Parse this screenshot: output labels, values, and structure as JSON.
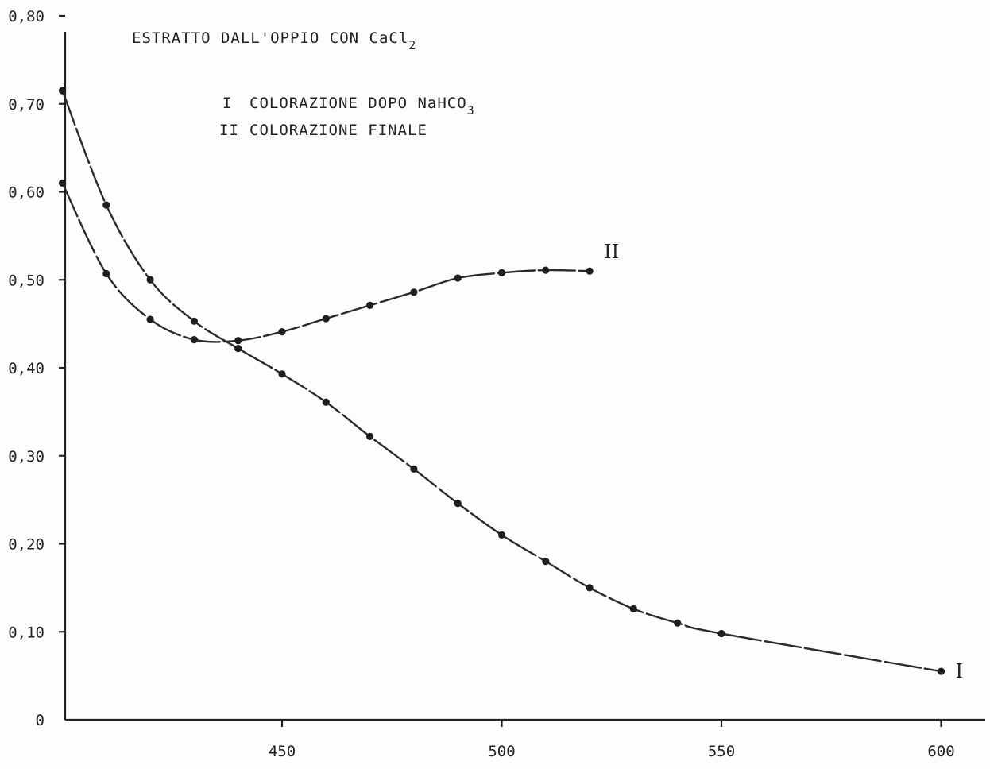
{
  "chart_data": {
    "type": "line",
    "title": "ESTRATTO DALL'OPPIO CON CaCl",
    "title_subscript": "2",
    "xlabel": "",
    "ylabel": "",
    "xlim": [
      402,
      610
    ],
    "ylim": [
      0,
      0.8
    ],
    "x_ticks": [
      450,
      500,
      550,
      600
    ],
    "x_tick_labels": [
      "450",
      "500",
      "550",
      "600"
    ],
    "y_ticks": [
      0,
      0.1,
      0.2,
      0.3,
      0.4,
      0.5,
      0.6,
      0.7,
      0.8
    ],
    "y_tick_labels": [
      "0",
      "0,10",
      "0,20",
      "0,30",
      "0,40",
      "0,50",
      "0,60",
      "0,70",
      "0,80"
    ],
    "grid": false,
    "legend": {
      "placement": "top-left",
      "entries": [
        {
          "marker": "I",
          "text": "COLORAZIONE DOPO NaHCO",
          "subscript": "3"
        },
        {
          "marker": "II",
          "text": "COLORAZIONE FINALE",
          "subscript": ""
        }
      ]
    },
    "series": [
      {
        "label": "I",
        "x": [
          400,
          410,
          420,
          430,
          440,
          450,
          460,
          470,
          480,
          490,
          500,
          510,
          520,
          530,
          540,
          550,
          600
        ],
        "y": [
          0.715,
          0.585,
          0.5,
          0.453,
          0.422,
          0.393,
          0.361,
          0.322,
          0.285,
          0.246,
          0.21,
          0.18,
          0.15,
          0.126,
          0.11,
          0.098,
          0.055
        ]
      },
      {
        "label": "II",
        "x": [
          400,
          410,
          420,
          430,
          440,
          450,
          460,
          470,
          480,
          490,
          500,
          510,
          520
        ],
        "y": [
          0.61,
          0.507,
          0.455,
          0.432,
          0.431,
          0.441,
          0.456,
          0.471,
          0.486,
          0.502,
          0.508,
          0.511,
          0.51
        ]
      }
    ]
  }
}
